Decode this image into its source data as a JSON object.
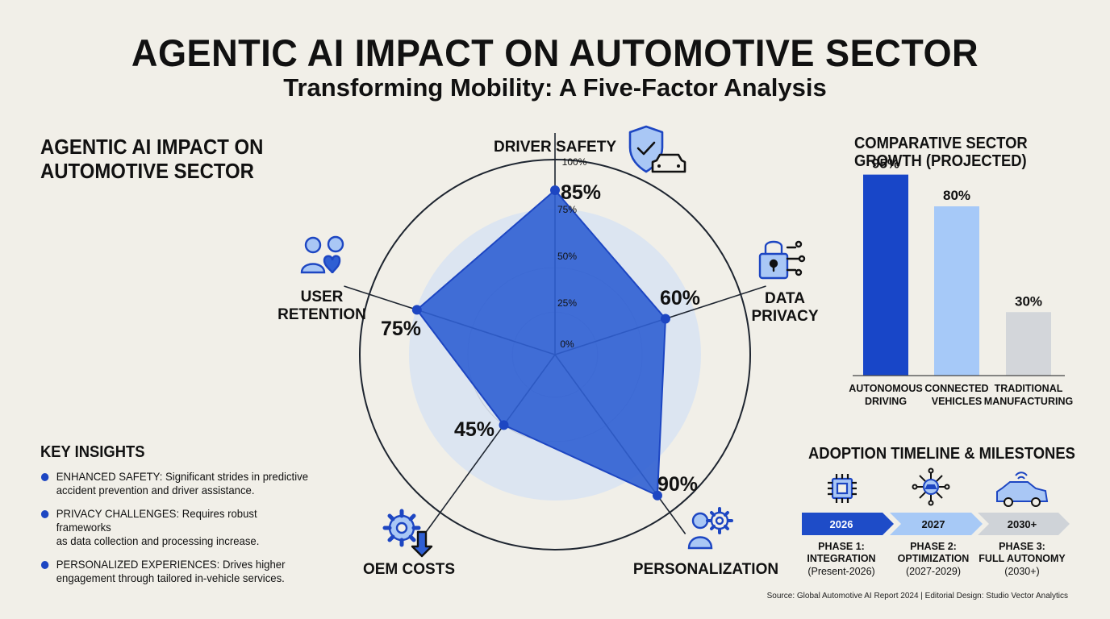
{
  "header": {
    "title": "AGENTIC AI IMPACT ON AUTOMOTIVE SECTOR",
    "subtitle": "Transforming Mobility: A Five-Factor Analysis"
  },
  "left_panel": {
    "title_line1": "AGENTIC AI IMPACT ON",
    "title_line2": "AUTOMOTIVE SECTOR"
  },
  "key_insights": {
    "title": "KEY INSIGHTS",
    "items": [
      {
        "line1": "ENHANCED SAFETY: Significant strides in predictive",
        "line2": "accident prevention and driver assistance."
      },
      {
        "line1": "PRIVACY CHALLENGES: Requires robust frameworks",
        "line2": "as data collection and processing increase."
      },
      {
        "line1": "PERSONALIZED EXPERIENCES: Drives higher",
        "line2": "engagement through tailored in-vehicle services."
      }
    ]
  },
  "chart_data": [
    {
      "type": "radar",
      "max": 100,
      "ticks": [
        "0%",
        "25%",
        "50%",
        "75%",
        "100%"
      ],
      "tick_values": [
        0,
        25,
        50,
        75,
        100
      ],
      "axes": [
        {
          "label_line1": "DRIVER SAFETY",
          "label_line2": "",
          "value": 85,
          "value_label": "85%",
          "icon": "shield-car-icon"
        },
        {
          "label_line1": "DATA",
          "label_line2": "PRIVACY",
          "value": 60,
          "value_label": "60%",
          "icon": "padlock-circuit-icon"
        },
        {
          "label_line1": "PERSONALIZATION",
          "label_line2": "",
          "value": 90,
          "value_label": "90%",
          "icon": "user-gear-icon"
        },
        {
          "label_line1": "OEM COSTS",
          "label_line2": "",
          "value": 45,
          "value_label": "45%",
          "icon": "gear-down-arrow-icon"
        },
        {
          "label_line1": "USER",
          "label_line2": "RETENTION",
          "value": 75,
          "value_label": "75%",
          "icon": "users-heart-icon"
        }
      ],
      "fill_color": "#2f5fd3",
      "point_color": "#1d46c2"
    },
    {
      "type": "bar",
      "title_line1": "COMPARATIVE SECTOR",
      "title_line2": "GROWTH (PROJECTED)",
      "categories": [
        {
          "line1": "AUTONOMOUS",
          "line2": "DRIVING"
        },
        {
          "line1": "CONNECTED",
          "line2": "VEHICLES"
        },
        {
          "line1": "TRADITIONAL",
          "line2": "MANUFACTURING"
        }
      ],
      "values": [
        95,
        80,
        30
      ],
      "value_labels": [
        "95%",
        "80%",
        "30%"
      ],
      "colors": [
        "#1846c8",
        "#a6c9f8",
        "#d3d6da"
      ],
      "ylim": [
        0,
        100
      ],
      "grid": false
    }
  ],
  "timeline": {
    "title": "ADOPTION TIMELINE & MILESTONES",
    "phases": [
      {
        "year": "2026",
        "name_line1": "PHASE 1:",
        "name_line2": "INTEGRATION",
        "range": "(Present-2026)",
        "icon": "chip-icon",
        "color": "#1e4cc8",
        "text_color": "#ffffff"
      },
      {
        "year": "2027",
        "name_line1": "PHASE 2:",
        "name_line2": "OPTIMIZATION",
        "range": "(2027-2029)",
        "icon": "connected-car-icon",
        "color": "#a7c9f6",
        "text_color": "#111111"
      },
      {
        "year": "2030+",
        "name_line1": "PHASE 3:",
        "name_line2": "FULL AUTONOMY",
        "range": "(2030+)",
        "icon": "car-signal-icon",
        "color": "#cfd3d8",
        "text_color": "#111111"
      }
    ]
  },
  "footer": {
    "source": "Source: Global Automotive AI Report 2024 | Editorial Design: Studio Vector Analytics"
  }
}
